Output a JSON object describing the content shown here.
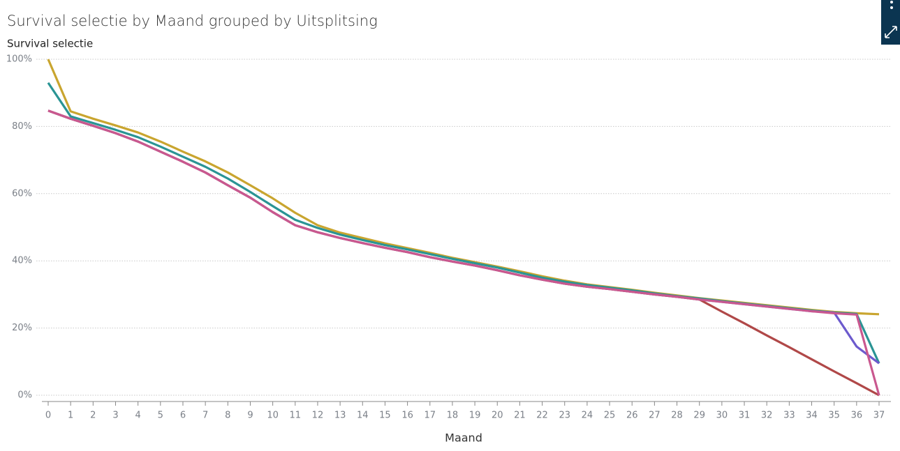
{
  "chart_data": {
    "type": "line",
    "title": "Survival selectie by Maand grouped by Uitsplitsing",
    "y_label": "Survival selectie",
    "x_label": "Maand",
    "x": [
      0,
      1,
      2,
      3,
      4,
      5,
      6,
      7,
      8,
      9,
      10,
      11,
      12,
      13,
      14,
      15,
      16,
      17,
      18,
      19,
      20,
      21,
      22,
      23,
      24,
      25,
      26,
      27,
      28,
      29,
      30,
      31,
      32,
      33,
      34,
      35,
      36,
      37
    ],
    "xlim": [
      0,
      37
    ],
    "xticks": [
      0,
      1,
      2,
      3,
      4,
      5,
      6,
      7,
      8,
      9,
      10,
      11,
      12,
      13,
      14,
      15,
      16,
      17,
      18,
      19,
      20,
      21,
      22,
      23,
      24,
      25,
      26,
      27,
      28,
      29,
      30,
      31,
      32,
      33,
      34,
      35,
      36,
      37
    ],
    "ylim": [
      0,
      100
    ],
    "yticks": [
      {
        "value": 0,
        "label": "0%"
      },
      {
        "value": 20,
        "label": "20%"
      },
      {
        "value": 40,
        "label": "40%"
      },
      {
        "value": 60,
        "label": "60%"
      },
      {
        "value": 80,
        "label": "80%"
      },
      {
        "value": 100,
        "label": "100%"
      }
    ],
    "grid": true,
    "series": [
      {
        "color": "#c9a52f",
        "values": [
          100,
          84.5,
          82.3,
          80.3,
          78.2,
          75.5,
          72.5,
          69.6,
          66.3,
          62.5,
          58.6,
          54.3,
          50.6,
          48.4,
          46.8,
          45.2,
          43.8,
          42.4,
          40.9,
          39.6,
          38.3,
          36.9,
          35.4,
          34.1,
          33,
          32.2,
          31.4,
          30.5,
          29.7,
          28.9,
          28.2,
          27.5,
          26.8,
          26.1,
          25.4,
          24.8,
          24.4,
          24.1
        ]
      },
      {
        "color": "#2a9494",
        "values": [
          93,
          83,
          81,
          79,
          76.8,
          74,
          71,
          68,
          64.5,
          60.5,
          56.3,
          52.2,
          49.8,
          47.8,
          46.2,
          44.7,
          43.4,
          42,
          40.6,
          39.3,
          38,
          36.5,
          35,
          33.8,
          32.8,
          32,
          31.2,
          30.3,
          29.5,
          28.8,
          28,
          27.3,
          26.6,
          25.9,
          25.2,
          24.6,
          24.2,
          9.5
        ]
      },
      {
        "color": "#6c5acd",
        "values": [
          84.7,
          82.3,
          80.2,
          78,
          75.5,
          72.5,
          69.5,
          66.3,
          62.5,
          58.8,
          54.5,
          50.6,
          48.5,
          46.8,
          45.3,
          43.9,
          42.6,
          41.1,
          39.8,
          38.6,
          37.2,
          35.7,
          34.4,
          33.2,
          32.3,
          31.6,
          30.8,
          30,
          29.3,
          28.5,
          27.8,
          27.1,
          26.4,
          25.7,
          25,
          24.6,
          14.5,
          9.5
        ]
      },
      {
        "color": "#b04848",
        "values": [
          84.7,
          82.3,
          80.2,
          78,
          75.5,
          72.5,
          69.5,
          66.3,
          62.5,
          58.8,
          54.5,
          50.6,
          48.5,
          46.8,
          45.3,
          43.9,
          42.6,
          41.1,
          39.8,
          38.6,
          37.2,
          35.7,
          34.4,
          33.2,
          32.3,
          31.6,
          30.8,
          30,
          29.3,
          28.5,
          24.9,
          21.4,
          17.8,
          14.3,
          10.7,
          7.1,
          3.6,
          0
        ]
      },
      {
        "color": "#c9588f",
        "values": [
          84.7,
          82.3,
          80.2,
          78,
          75.5,
          72.5,
          69.5,
          66.3,
          62.5,
          58.8,
          54.5,
          50.6,
          48.5,
          46.8,
          45.3,
          43.9,
          42.6,
          41.1,
          39.8,
          38.6,
          37.2,
          35.7,
          34.4,
          33.2,
          32.3,
          31.6,
          30.8,
          30,
          29.3,
          28.5,
          27.8,
          27.1,
          26.4,
          25.7,
          25,
          24.4,
          24,
          0
        ]
      }
    ]
  }
}
